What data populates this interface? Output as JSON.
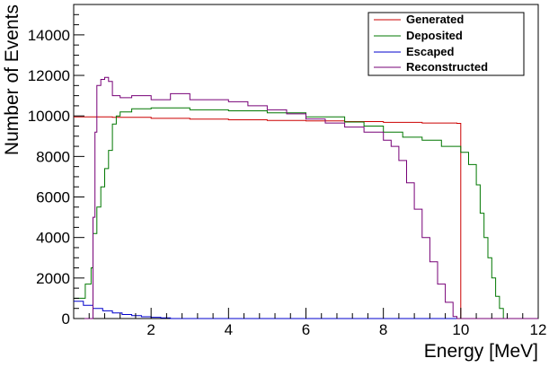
{
  "chart_data": {
    "type": "line",
    "style": "step-histogram",
    "xlabel": "Energy [MeV]",
    "ylabel": "Number of Events",
    "xlim": [
      0,
      12
    ],
    "ylim": [
      0,
      15500
    ],
    "x_ticks": [
      2,
      4,
      6,
      8,
      10,
      12
    ],
    "y_ticks": [
      0,
      2000,
      4000,
      6000,
      8000,
      10000,
      12000,
      14000
    ],
    "grid": false,
    "legend_position": "top-right",
    "series": [
      {
        "name": "Generated",
        "color": "#cc0000",
        "x": [
          0.0,
          0.5,
          1.0,
          2.0,
          3.0,
          4.0,
          5.0,
          6.0,
          7.0,
          8.0,
          9.0,
          9.9,
          10.0,
          12.0
        ],
        "y": [
          9950,
          9950,
          9930,
          9880,
          9840,
          9810,
          9780,
          9750,
          9720,
          9680,
          9650,
          9630,
          0,
          0
        ]
      },
      {
        "name": "Deposited",
        "color": "#007700",
        "x": [
          0.0,
          0.3,
          0.45,
          0.5,
          0.6,
          0.7,
          0.8,
          0.9,
          1.0,
          1.1,
          1.2,
          1.5,
          2.0,
          3.0,
          4.0,
          5.0,
          6.0,
          7.0,
          7.5,
          8.0,
          8.5,
          9.0,
          9.5,
          10.0,
          10.2,
          10.4,
          10.5,
          10.6,
          10.7,
          10.8,
          10.9,
          11.0,
          11.1,
          11.2,
          12.0
        ],
        "y": [
          1000,
          1700,
          2500,
          4200,
          5500,
          6500,
          7400,
          8300,
          9600,
          10000,
          10200,
          10350,
          10400,
          10300,
          10250,
          10150,
          9950,
          9700,
          9500,
          9200,
          8950,
          8800,
          8500,
          8200,
          7600,
          6600,
          5200,
          4000,
          3000,
          2000,
          1100,
          500,
          0,
          0,
          0
        ]
      },
      {
        "name": "Escaped",
        "color": "#0000cc",
        "x": [
          0.0,
          0.25,
          0.5,
          0.75,
          1.0,
          1.25,
          1.5,
          1.75,
          2.0,
          2.25,
          2.5,
          12.0
        ],
        "y": [
          850,
          650,
          500,
          380,
          280,
          200,
          140,
          90,
          60,
          30,
          0,
          0
        ]
      },
      {
        "name": "Reconstructed",
        "color": "#770077",
        "x": [
          0.0,
          0.4,
          0.5,
          0.55,
          0.6,
          0.7,
          0.8,
          0.9,
          1.0,
          1.2,
          1.5,
          2.0,
          2.5,
          3.0,
          3.5,
          4.0,
          4.5,
          5.0,
          5.5,
          6.0,
          6.5,
          7.0,
          7.5,
          8.0,
          8.2,
          8.4,
          8.6,
          8.8,
          9.0,
          9.2,
          9.4,
          9.6,
          9.8,
          9.9,
          10.0,
          12.0
        ],
        "y": [
          0,
          0,
          5000,
          9200,
          11500,
          11800,
          11900,
          11700,
          11000,
          10900,
          11000,
          10800,
          11100,
          10800,
          10800,
          10700,
          10500,
          10300,
          10100,
          9850,
          9650,
          9450,
          9200,
          8800,
          8500,
          7800,
          6700,
          5400,
          4000,
          2800,
          1700,
          800,
          100,
          0,
          0,
          0
        ]
      }
    ]
  }
}
